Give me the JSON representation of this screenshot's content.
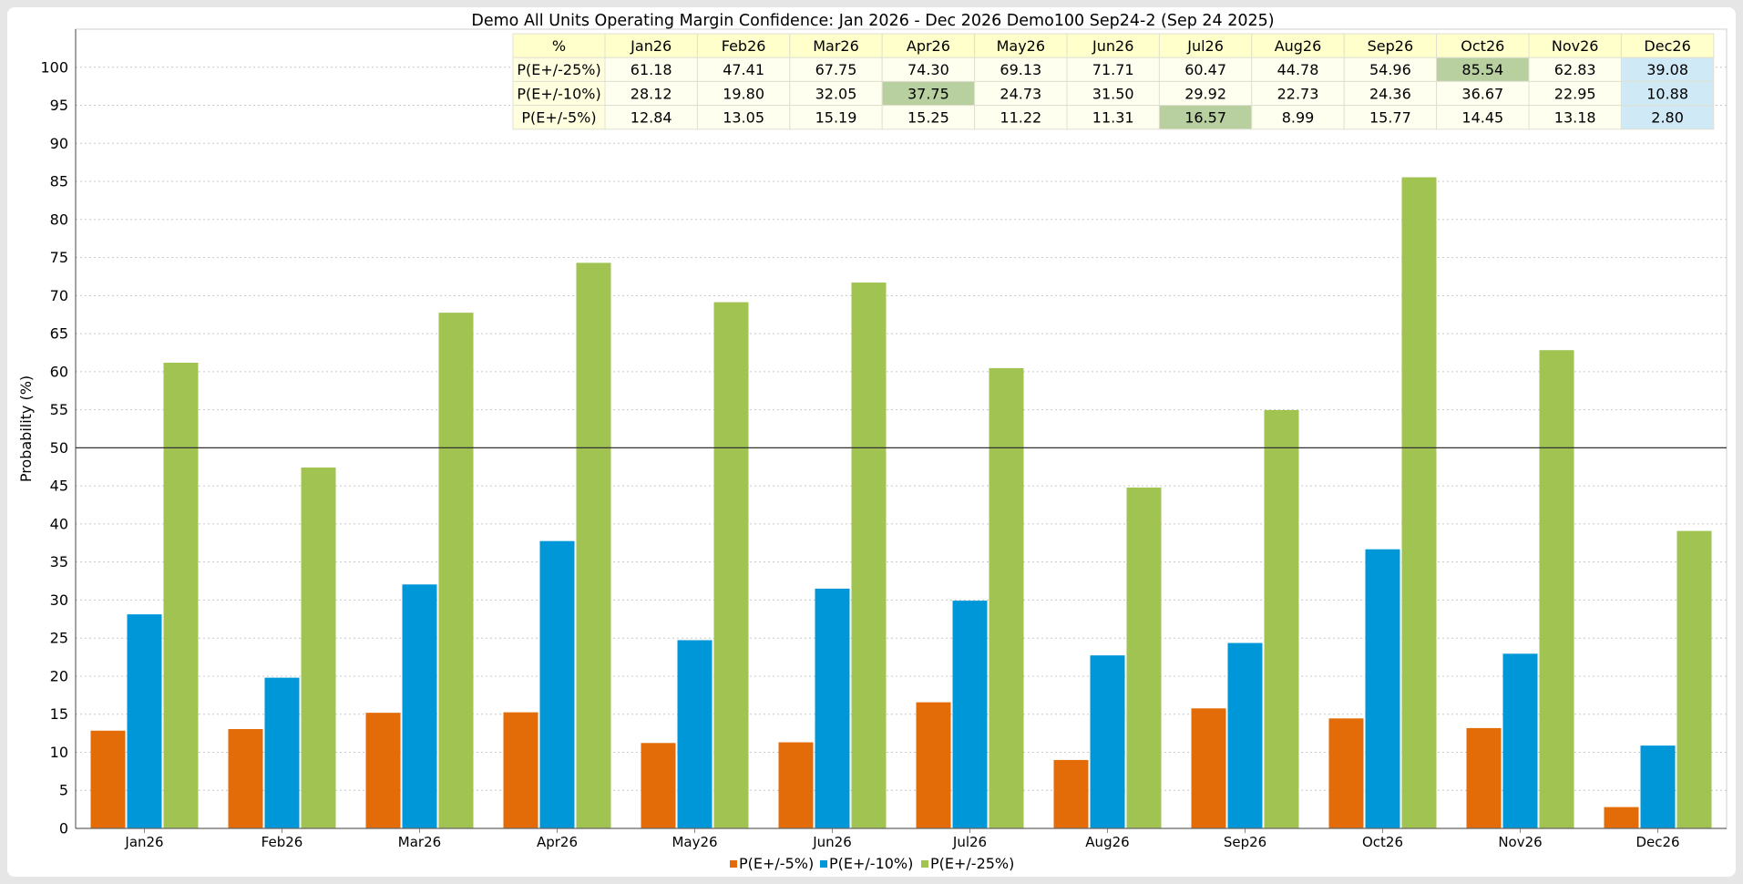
{
  "chart_data": {
    "type": "bar",
    "title": "Demo All Units Operating Margin    Confidence: Jan 2026 - Dec 2026     Demo100 Sep24-2 (Sep 24 2025)",
    "xlabel": "",
    "ylabel": "Probability (%)",
    "ylim": [
      0,
      105
    ],
    "yticks": [
      0,
      5,
      10,
      15,
      20,
      25,
      30,
      35,
      40,
      45,
      50,
      55,
      60,
      65,
      70,
      75,
      80,
      85,
      90,
      95,
      100
    ],
    "reference_line": 50,
    "grid": "horizontal dotted",
    "legend_position": "bottom-center",
    "categories": [
      "Jan26",
      "Feb26",
      "Mar26",
      "Apr26",
      "May26",
      "Jun26",
      "Jul26",
      "Aug26",
      "Sep26",
      "Oct26",
      "Nov26",
      "Dec26"
    ],
    "series": [
      {
        "name": "P(E+/-5%)",
        "color": "#e36c09",
        "values": [
          12.84,
          13.05,
          15.19,
          15.25,
          11.22,
          11.31,
          16.57,
          8.99,
          15.77,
          14.45,
          13.18,
          2.8
        ]
      },
      {
        "name": "P(E+/-10%)",
        "color": "#0097d9",
        "values": [
          28.12,
          19.8,
          32.05,
          37.75,
          24.73,
          31.5,
          29.92,
          22.73,
          24.36,
          36.67,
          22.95,
          10.88
        ]
      },
      {
        "name": "P(E+/-25%)",
        "color": "#a1c352",
        "values": [
          61.18,
          47.41,
          67.75,
          74.3,
          69.13,
          71.71,
          60.47,
          44.78,
          54.96,
          85.54,
          62.83,
          39.08
        ]
      }
    ],
    "table": {
      "corner": "%",
      "columns": [
        "Jan26",
        "Feb26",
        "Mar26",
        "Apr26",
        "May26",
        "Jun26",
        "Jul26",
        "Aug26",
        "Sep26",
        "Oct26",
        "Nov26",
        "Dec26"
      ],
      "rows": [
        {
          "label": "P(E+/-25%)",
          "values": [
            "61.18",
            "47.41",
            "67.75",
            "74.30",
            "69.13",
            "71.71",
            "60.47",
            "44.78",
            "54.96",
            "85.54",
            "62.83",
            "39.08"
          ],
          "max_index": 9,
          "min_index": 11
        },
        {
          "label": "P(E+/-10%)",
          "values": [
            "28.12",
            "19.80",
            "32.05",
            "37.75",
            "24.73",
            "31.50",
            "29.92",
            "22.73",
            "24.36",
            "36.67",
            "22.95",
            "10.88"
          ],
          "max_index": 3,
          "min_index": 11
        },
        {
          "label": "P(E+/-5%)",
          "values": [
            "12.84",
            "13.05",
            "15.19",
            "15.25",
            "11.22",
            "11.31",
            "16.57",
            "8.99",
            "15.77",
            "14.45",
            "13.18",
            "2.80"
          ],
          "max_index": 6,
          "min_index": 11
        }
      ],
      "colors": {
        "header_bg": "#ffffcc",
        "row_bg": "#fffff0",
        "label_bg": "#ffffe0",
        "max_bg": "#b8cfa0",
        "min_bg": "#cfe9f6",
        "border": "#e0e0d0"
      }
    }
  }
}
